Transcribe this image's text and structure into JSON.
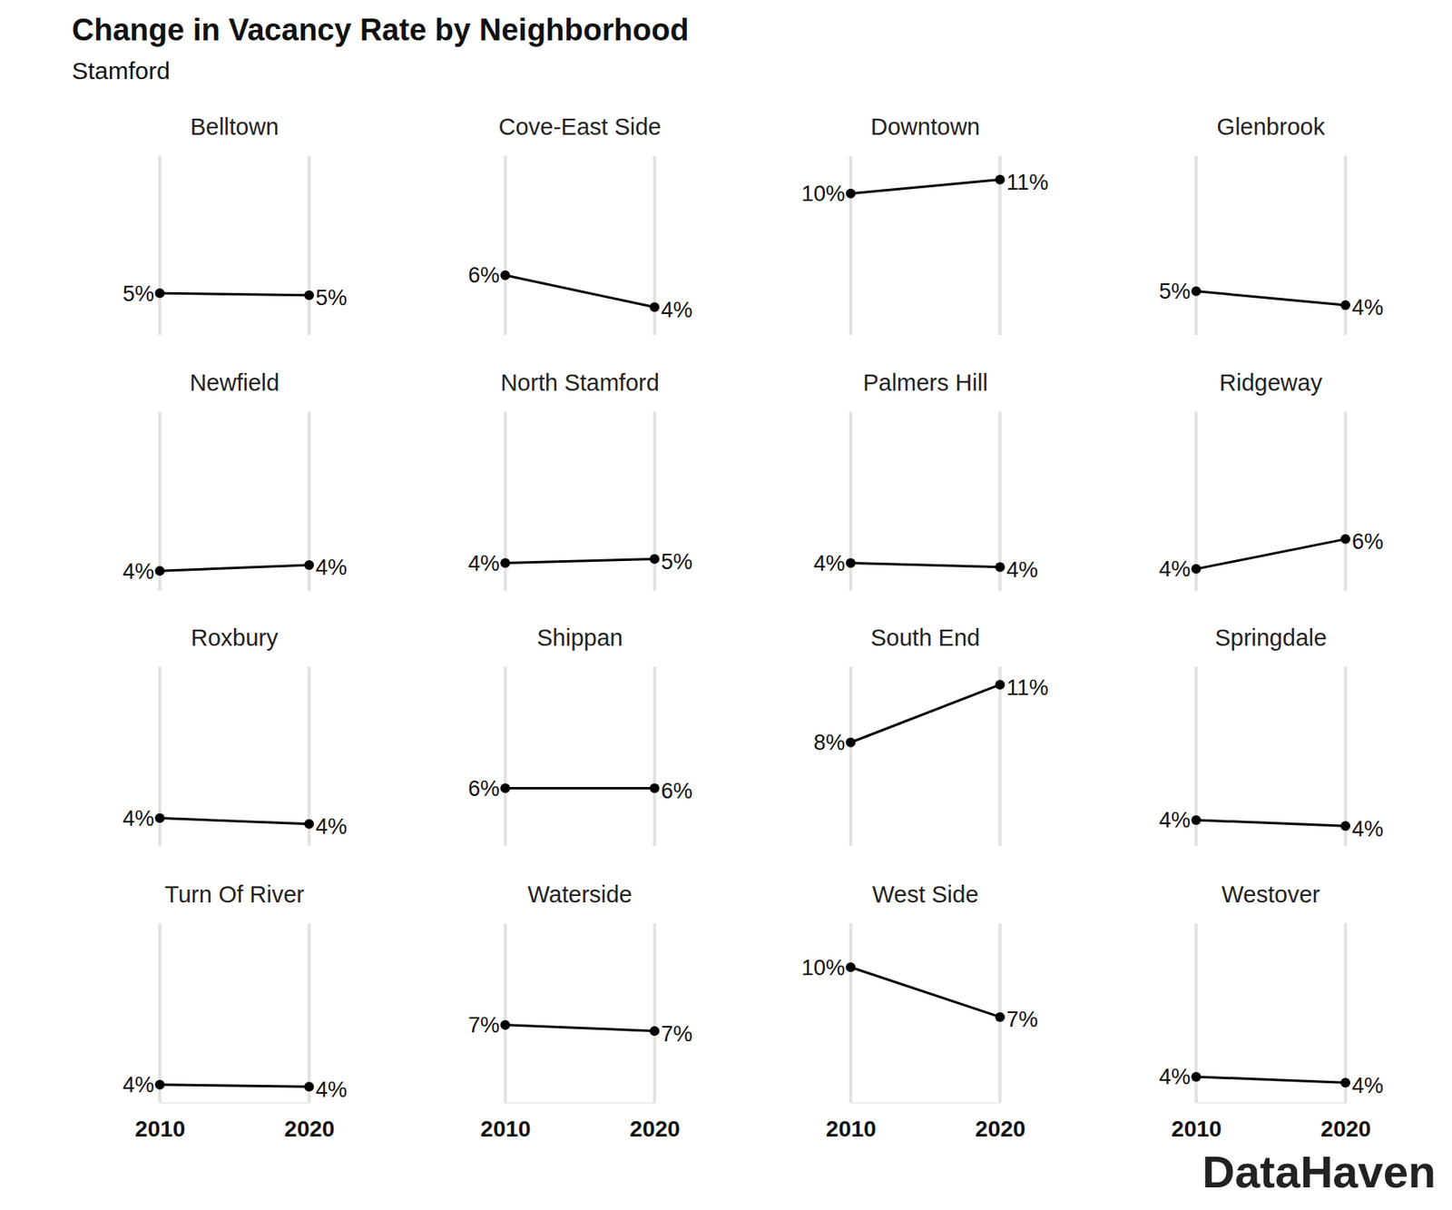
{
  "chart_data": {
    "type": "line",
    "title": "Change in Vacancy Rate by Neighborhood",
    "subtitle": "Stamford",
    "caption": "DataHaven",
    "x": [
      2010,
      2020
    ],
    "xlim": [
      2010,
      2020
    ],
    "xticks": [
      2010,
      2020
    ],
    "ylim": [
      3,
      12
    ],
    "grid": true,
    "tick_labels": "x",
    "data_labels": true,
    "color": "#000000",
    "marker": "circle",
    "series": [
      {
        "name": "Belltown",
        "values": [
          5.1,
          5.0
        ],
        "value_labels": [
          "5%",
          "5%"
        ]
      },
      {
        "name": "Cove-East Side",
        "values": [
          6.0,
          4.4
        ],
        "value_labels": [
          "6%",
          "4%"
        ]
      },
      {
        "name": "Downtown",
        "values": [
          10.1,
          10.8
        ],
        "value_labels": [
          "10%",
          "11%"
        ]
      },
      {
        "name": "Glenbrook",
        "values": [
          5.2,
          4.5
        ],
        "value_labels": [
          "5%",
          "4%"
        ]
      },
      {
        "name": "Newfield",
        "values": [
          4.0,
          4.3
        ],
        "value_labels": [
          "4%",
          "4%"
        ]
      },
      {
        "name": "North Stamford",
        "values": [
          4.4,
          4.6
        ],
        "value_labels": [
          "4%",
          "5%"
        ]
      },
      {
        "name": "Palmers Hill",
        "values": [
          4.4,
          4.2
        ],
        "value_labels": [
          "4%",
          "4%"
        ]
      },
      {
        "name": "Ridgeway",
        "values": [
          4.1,
          5.6
        ],
        "value_labels": [
          "4%",
          "6%"
        ]
      },
      {
        "name": "Roxbury",
        "values": [
          4.4,
          4.1
        ],
        "value_labels": [
          "4%",
          "4%"
        ]
      },
      {
        "name": "Shippan",
        "values": [
          5.9,
          5.9
        ],
        "value_labels": [
          "6%",
          "6%"
        ]
      },
      {
        "name": "South End",
        "values": [
          8.2,
          11.1
        ],
        "value_labels": [
          "8%",
          "11%"
        ]
      },
      {
        "name": "Springdale",
        "values": [
          4.3,
          4.0
        ],
        "value_labels": [
          "4%",
          "4%"
        ]
      },
      {
        "name": "Turn Of River",
        "values": [
          3.9,
          3.8
        ],
        "value_labels": [
          "4%",
          "4%"
        ]
      },
      {
        "name": "Waterside",
        "values": [
          6.9,
          6.6
        ],
        "value_labels": [
          "7%",
          "7%"
        ]
      },
      {
        "name": "West Side",
        "values": [
          9.8,
          7.3
        ],
        "value_labels": [
          "10%",
          "7%"
        ]
      },
      {
        "name": "Westover",
        "values": [
          4.3,
          4.0
        ],
        "value_labels": [
          "4%",
          "4%"
        ]
      }
    ]
  }
}
